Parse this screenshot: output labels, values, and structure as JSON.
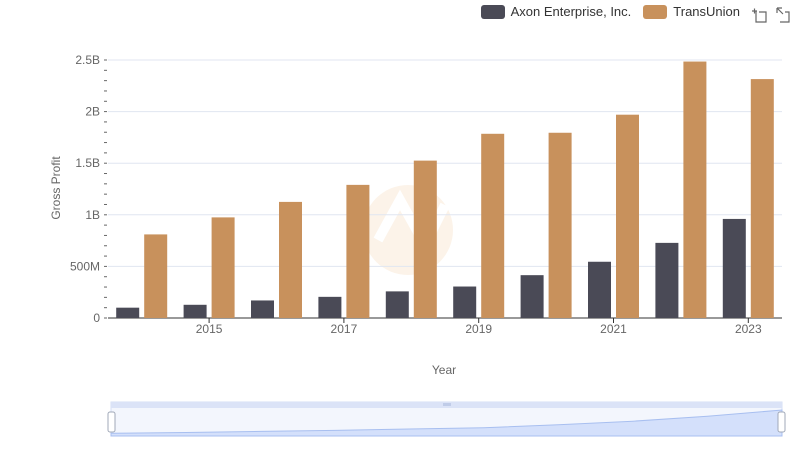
{
  "chart_data": {
    "type": "bar",
    "title": "",
    "xlabel": "Year",
    "ylabel": "Gross Profit",
    "categories": [
      "2014",
      "2015",
      "2016",
      "2017",
      "2018",
      "2019",
      "2020",
      "2021",
      "2022",
      "2023"
    ],
    "x_tick_labels": [
      "2015",
      "2017",
      "2019",
      "2021",
      "2023"
    ],
    "y_tick_labels": [
      "0",
      "500M",
      "1B",
      "1.5B",
      "2B",
      "2.5B"
    ],
    "y_tick_values": [
      0,
      500000000,
      1000000000,
      1500000000,
      2000000000,
      2500000000
    ],
    "ylim": [
      0,
      2500000000
    ],
    "series": [
      {
        "name": "Axon Enterprise, Inc.",
        "color": "#4a4a56",
        "values": [
          100000000,
          128000000,
          170000000,
          205000000,
          258000000,
          305000000,
          415000000,
          545000000,
          728000000,
          960000000
        ]
      },
      {
        "name": "TransUnion",
        "color": "#c8915c",
        "values": [
          810000000,
          975000000,
          1125000000,
          1290000000,
          1525000000,
          1785000000,
          1795000000,
          1970000000,
          2485000000,
          2315000000
        ]
      }
    ],
    "legend_position": "top-right"
  },
  "icons": {
    "zoom": "zoom-icon",
    "restore": "restore-icon"
  }
}
